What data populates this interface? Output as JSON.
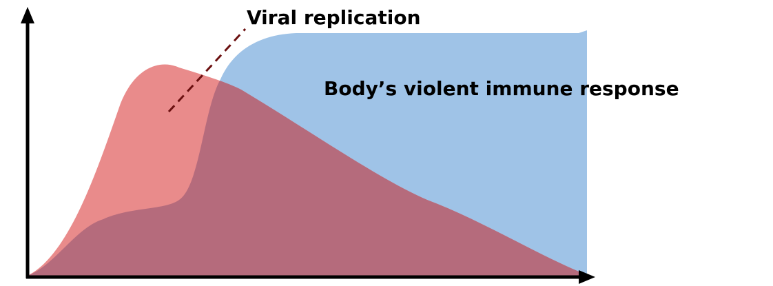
{
  "labels": {
    "virus": "Viral replication",
    "immune": "Body’s violent immune response"
  }
}
